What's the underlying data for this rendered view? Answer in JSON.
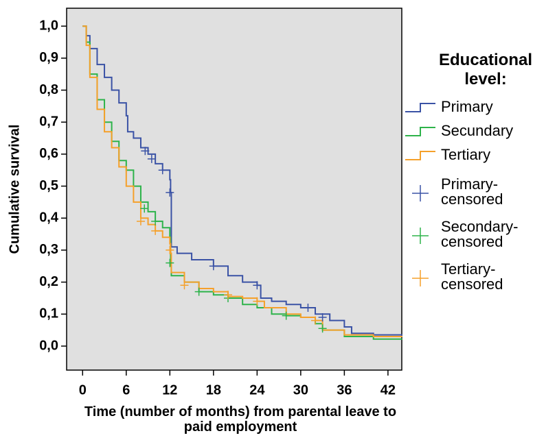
{
  "chart_data": {
    "type": "line",
    "step": true,
    "x_label": "Time (number of months) from parental leave to paid employment",
    "y_label": "Cumulative survival",
    "legend_title": "Educational level:",
    "xlim": [
      -2.2,
      43.9
    ],
    "xticks": [
      0,
      6,
      12,
      18,
      24,
      30,
      36,
      42
    ],
    "ylim": [
      -0.075,
      1.056
    ],
    "yticks": [
      {
        "value": 0,
        "label": "0,0"
      },
      {
        "value": 0.1,
        "label": "0,1"
      },
      {
        "value": 0.2,
        "label": "0,2"
      },
      {
        "value": 0.3,
        "label": "0,3"
      },
      {
        "value": 0.4,
        "label": "0,4"
      },
      {
        "value": 0.5,
        "label": "0,5"
      },
      {
        "value": 0.6,
        "label": "0,6"
      },
      {
        "value": 0.7,
        "label": "0,7"
      },
      {
        "value": 0.8,
        "label": "0,8"
      },
      {
        "value": 0.9,
        "label": "0,9"
      },
      {
        "value": 1,
        "label": "1,0"
      }
    ],
    "series": [
      {
        "name": "Primary",
        "color": "#3a52a5",
        "x": [
          0,
          0.5,
          1,
          2,
          3,
          4,
          5,
          6,
          6.2,
          7,
          8,
          9,
          10,
          11,
          12,
          12.1,
          12.2,
          13,
          15,
          18,
          20,
          22,
          24,
          24.5,
          26,
          28,
          30,
          32,
          34,
          36,
          37,
          40,
          43.9
        ],
        "values": [
          1,
          0.97,
          0.93,
          0.88,
          0.84,
          0.8,
          0.76,
          0.72,
          0.67,
          0.65,
          0.62,
          0.6,
          0.57,
          0.55,
          0.52,
          0.48,
          0.31,
          0.29,
          0.27,
          0.25,
          0.22,
          0.2,
          0.19,
          0.15,
          0.14,
          0.13,
          0.12,
          0.1,
          0.08,
          0.06,
          0.04,
          0.035,
          0.03
        ]
      },
      {
        "name": "Secundary",
        "color": "#2db34a",
        "x": [
          0,
          0.5,
          1,
          2,
          3,
          4,
          5,
          6,
          7,
          8,
          9,
          10,
          11,
          12,
          12.1,
          12.2,
          14,
          16,
          18,
          20,
          22,
          24,
          26,
          28,
          30,
          32,
          33,
          36,
          40,
          43.9
        ],
        "values": [
          1,
          0.95,
          0.85,
          0.77,
          0.7,
          0.64,
          0.58,
          0.55,
          0.5,
          0.45,
          0.42,
          0.39,
          0.37,
          0.34,
          0.25,
          0.22,
          0.2,
          0.17,
          0.16,
          0.15,
          0.13,
          0.12,
          0.1,
          0.095,
          0.09,
          0.07,
          0.05,
          0.03,
          0.022,
          0.02
        ]
      },
      {
        "name": "Tertiary",
        "color": "#f5a02a",
        "x": [
          0,
          0.5,
          1,
          2,
          3,
          4,
          5,
          6,
          7,
          8,
          9,
          10,
          11,
          12,
          12.1,
          12.2,
          14,
          16,
          18,
          20,
          22,
          24,
          25,
          28,
          30,
          32,
          33,
          36,
          40,
          43.9
        ],
        "values": [
          1,
          0.94,
          0.84,
          0.74,
          0.67,
          0.62,
          0.56,
          0.5,
          0.45,
          0.4,
          0.38,
          0.36,
          0.34,
          0.32,
          0.29,
          0.23,
          0.2,
          0.18,
          0.17,
          0.155,
          0.15,
          0.14,
          0.12,
          0.1,
          0.09,
          0.08,
          0.05,
          0.035,
          0.03,
          0.028
        ]
      },
      {
        "name": "Primary-censored",
        "color": "#3a52a5",
        "marker": "+",
        "x": [
          8.6,
          9.5,
          11,
          12,
          18,
          24,
          31,
          33
        ],
        "values": [
          0.61,
          0.585,
          0.55,
          0.48,
          0.25,
          0.19,
          0.12,
          0.09
        ]
      },
      {
        "name": "Secondary-censored",
        "color": "#2db34a",
        "marker": "+",
        "x": [
          8.5,
          10,
          12,
          16,
          20,
          28,
          33
        ],
        "values": [
          0.43,
          0.39,
          0.26,
          0.17,
          0.15,
          0.095,
          0.055
        ]
      },
      {
        "name": "Tertiary-censored",
        "color": "#f5a02a",
        "marker": "+",
        "x": [
          8,
          10,
          12,
          14,
          20,
          24,
          32
        ],
        "values": [
          0.39,
          0.36,
          0.3,
          0.19,
          0.16,
          0.14,
          0.08
        ]
      }
    ]
  }
}
